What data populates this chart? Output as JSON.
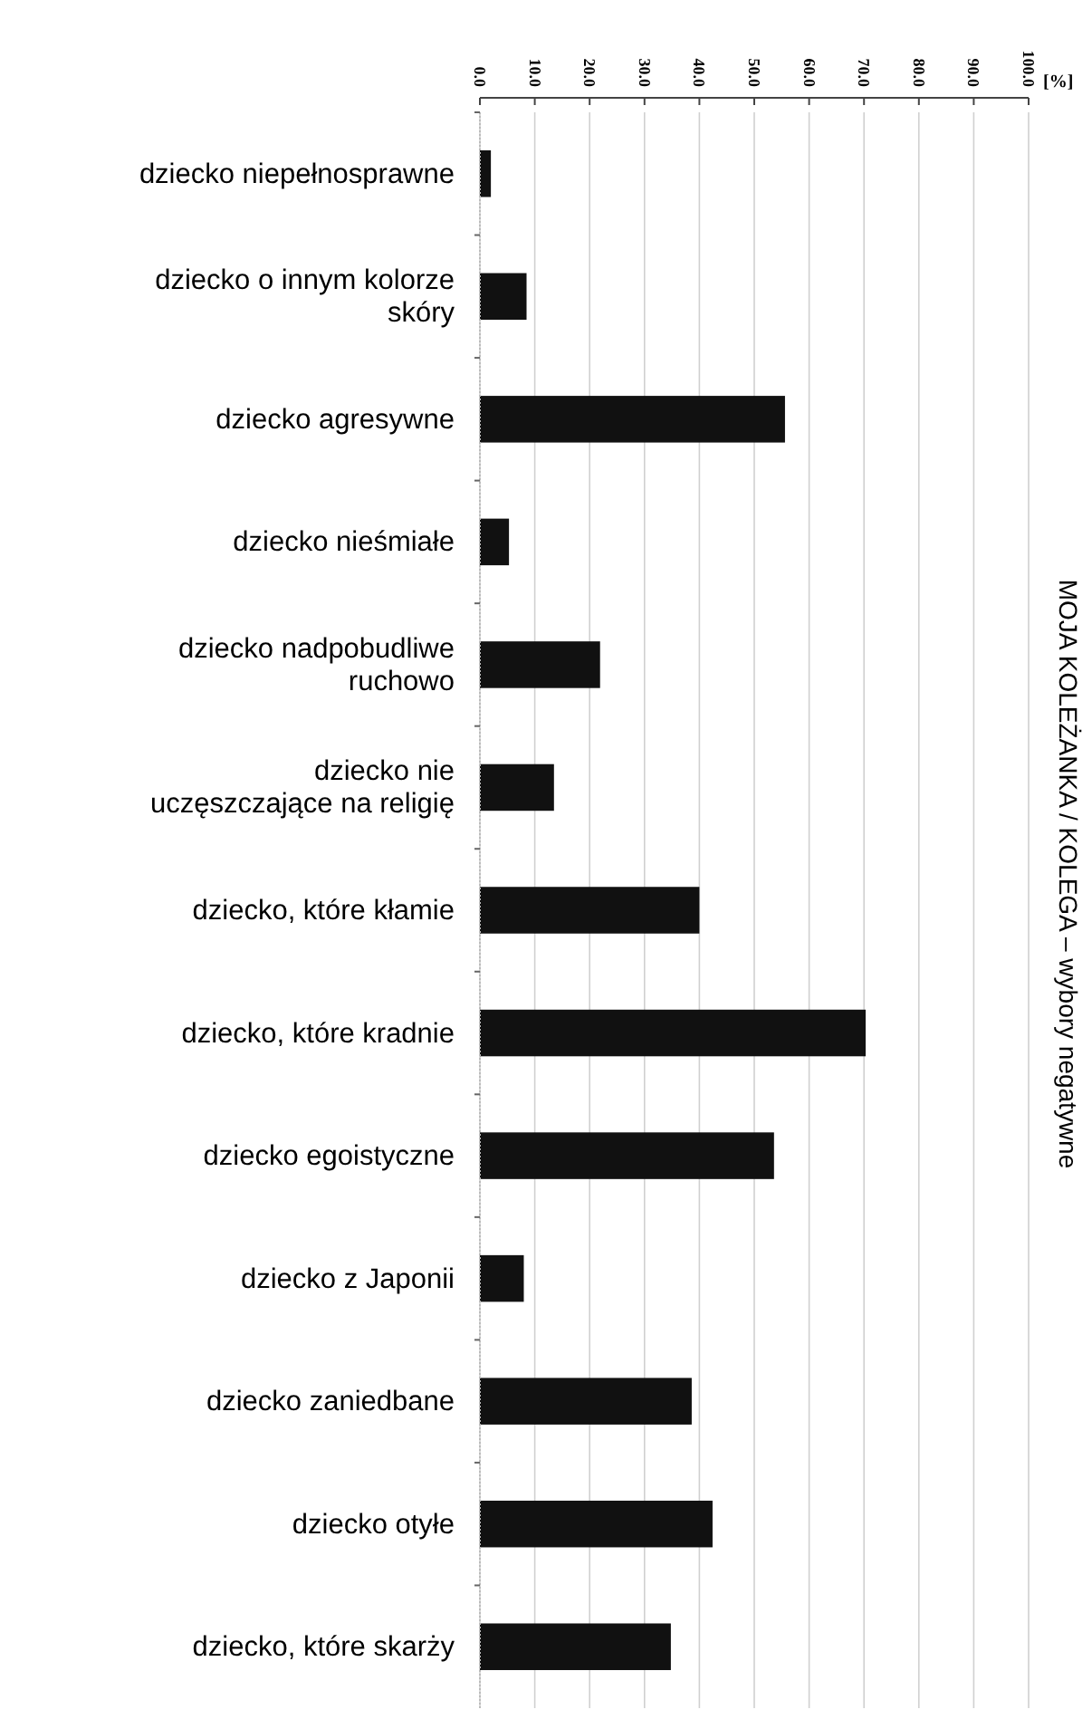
{
  "chart_data": {
    "type": "bar",
    "orientation": "horizontal",
    "title": "MOJA KOLEŻANKA / KOLEGA – wybory negatywne",
    "xlabel": "[%]",
    "categories": [
      "dziecko niepełnosprawne",
      "dziecko o innym kolorze skóry",
      "dziecko agresywne",
      "dziecko nieśmiałe",
      "dziecko nadpobudliwe ruchowo",
      "dziecko nie uczęszczające na religię",
      "dziecko, które kłamie",
      "dziecko, które kradnie",
      "dziecko egoistyczne",
      "dziecko z Japonii",
      "dziecko zaniedbane",
      "dziecko otyłe",
      "dziecko, które skarży"
    ],
    "values": [
      2.0,
      8.5,
      55.6,
      5.3,
      21.9,
      13.5,
      40.0,
      70.3,
      53.6,
      8.0,
      38.6,
      42.4,
      34.8
    ],
    "color": "#111111",
    "xlim": [
      0,
      100
    ],
    "xticks": [
      {
        "value": 0,
        "label": "0.0"
      },
      {
        "value": 10,
        "label": "10.0"
      },
      {
        "value": 20,
        "label": "20.0"
      },
      {
        "value": 30,
        "label": "30.0"
      },
      {
        "value": 40,
        "label": "40.0"
      },
      {
        "value": 50,
        "label": "50.0"
      },
      {
        "value": 60,
        "label": "60.0"
      },
      {
        "value": 70,
        "label": "70.0"
      },
      {
        "value": 80,
        "label": "80.0"
      },
      {
        "value": 90,
        "label": "90.0"
      },
      {
        "value": 100,
        "label": "100.0"
      }
    ],
    "grid": "x"
  }
}
